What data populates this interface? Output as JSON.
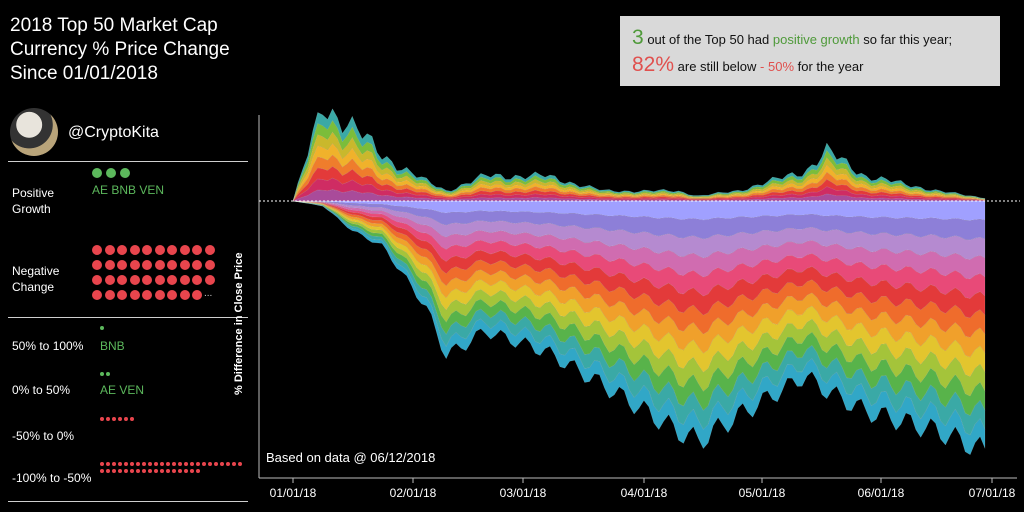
{
  "title_lines": [
    "2018 Top 50 Market Cap",
    "Currency % Price Change",
    "Since 01/01/2018"
  ],
  "handle": "@CryptoKita",
  "growth": {
    "positive_label_1": "Positive",
    "positive_label_2": "Growth",
    "positive_codes": "AE BNB VEN",
    "negative_label_1": "Negative",
    "negative_label_2": "Change",
    "negative_more": "..."
  },
  "buckets": [
    {
      "label": "50% to 100%",
      "count": 1,
      "codes": "BNB",
      "color": "#5cb85c"
    },
    {
      "label": "0% to 50%",
      "count": 2,
      "codes": "AE  VEN",
      "color": "#5cb85c"
    },
    {
      "label": "-50% to 0%",
      "count": 6,
      "codes": "",
      "color": "#e8454d"
    },
    {
      "label": "-100% to -50%",
      "count": 41,
      "codes": "",
      "color": "#e8454d"
    }
  ],
  "info": {
    "count": "3",
    "line1_mid": "out of the Top 50 had",
    "line1_highlight": "positive growth",
    "line1_end": "so far this year;",
    "percent": "82%",
    "line2_mid": "are still below",
    "line2_highlight": "- 50%",
    "line2_end": "for the year"
  },
  "colors": {
    "positive": "#5cb85c",
    "negative": "#e8454d"
  },
  "chart_data": {
    "type": "area",
    "ylabel": "% Difference in Close Price",
    "annotation": "Based on data @ 06/12/2018",
    "x_ticks": [
      "01/01/18",
      "02/01/18",
      "03/01/18",
      "04/01/18",
      "05/01/18",
      "06/01/18",
      "07/01/18"
    ],
    "x_dates": [
      "2018-01-01",
      "2018-01-08",
      "2018-01-15",
      "2018-01-22",
      "2018-02-01",
      "2018-02-06",
      "2018-02-15",
      "2018-03-01",
      "2018-03-15",
      "2018-04-01",
      "2018-04-06",
      "2018-04-15",
      "2018-05-01",
      "2018-05-06",
      "2018-05-15",
      "2018-06-01",
      "2018-06-12"
    ],
    "upper_envelope_sum": [
      0,
      95,
      75,
      45,
      20,
      10,
      25,
      25,
      10,
      10,
      5,
      10,
      30,
      50,
      25,
      10,
      3
    ],
    "lower_envelope_sum": [
      0,
      -5,
      -30,
      -45,
      -105,
      -155,
      -130,
      -150,
      -185,
      -230,
      -240,
      -215,
      -175,
      -190,
      -210,
      -230,
      -250
    ],
    "n_series": 50,
    "stats": {
      "positive_count": 3,
      "pct_below_minus_50": 82
    }
  }
}
